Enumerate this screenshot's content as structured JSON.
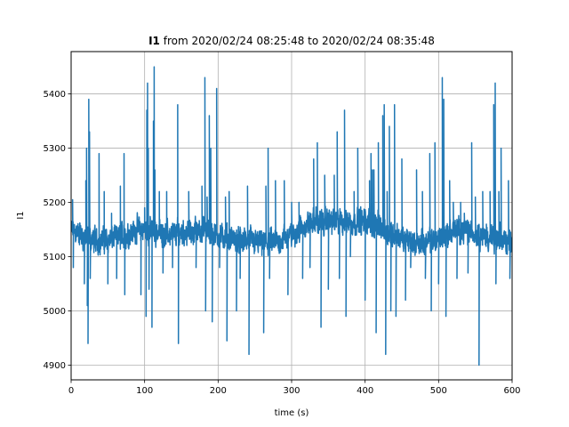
{
  "chart_data": {
    "type": "line",
    "title_bold": "I1",
    "title_rest": " from 2020/02/24 08:25:48 to 2020/02/24 08:35:48",
    "xlabel": "time (s)",
    "ylabel": "I1",
    "xlim": [
      0,
      600
    ],
    "ylim": [
      4873,
      5478
    ],
    "xticks": [
      0,
      100,
      200,
      300,
      400,
      500,
      600
    ],
    "yticks": [
      4900,
      5000,
      5100,
      5200,
      5300,
      5400
    ],
    "grid": true,
    "series_color": "#1f77b4",
    "series": [
      {
        "baseline": [
          [
            0,
            5150
          ],
          [
            15,
            5140
          ],
          [
            30,
            5130
          ],
          [
            45,
            5130
          ],
          [
            60,
            5135
          ],
          [
            75,
            5140
          ],
          [
            90,
            5150
          ],
          [
            105,
            5150
          ],
          [
            120,
            5145
          ],
          [
            135,
            5140
          ],
          [
            150,
            5145
          ],
          [
            165,
            5145
          ],
          [
            180,
            5150
          ],
          [
            195,
            5140
          ],
          [
            210,
            5135
          ],
          [
            225,
            5130
          ],
          [
            240,
            5130
          ],
          [
            255,
            5125
          ],
          [
            270,
            5125
          ],
          [
            285,
            5130
          ],
          [
            300,
            5140
          ],
          [
            315,
            5155
          ],
          [
            330,
            5165
          ],
          [
            345,
            5165
          ],
          [
            360,
            5165
          ],
          [
            375,
            5165
          ],
          [
            390,
            5165
          ],
          [
            400,
            5165
          ],
          [
            410,
            5160
          ],
          [
            425,
            5150
          ],
          [
            440,
            5140
          ],
          [
            455,
            5130
          ],
          [
            470,
            5125
          ],
          [
            485,
            5125
          ],
          [
            500,
            5135
          ],
          [
            515,
            5145
          ],
          [
            530,
            5150
          ],
          [
            545,
            5145
          ],
          [
            560,
            5140
          ],
          [
            575,
            5130
          ],
          [
            590,
            5130
          ],
          [
            600,
            5130
          ]
        ],
        "spikes": [
          [
            2,
            5205
          ],
          [
            3,
            5080
          ],
          [
            18,
            5050
          ],
          [
            20,
            5240
          ],
          [
            21,
            5300
          ],
          [
            22,
            5010
          ],
          [
            23,
            4940
          ],
          [
            24,
            5390
          ],
          [
            25,
            5330
          ],
          [
            26,
            5060
          ],
          [
            38,
            5290
          ],
          [
            45,
            5220
          ],
          [
            50,
            5050
          ],
          [
            55,
            5180
          ],
          [
            62,
            5060
          ],
          [
            67,
            5230
          ],
          [
            72,
            5290
          ],
          [
            73,
            5030
          ],
          [
            85,
            5140
          ],
          [
            95,
            5030
          ],
          [
            100,
            5190
          ],
          [
            102,
            4990
          ],
          [
            103,
            5370
          ],
          [
            104,
            5420
          ],
          [
            105,
            5300
          ],
          [
            106,
            5040
          ],
          [
            110,
            4970
          ],
          [
            112,
            5350
          ],
          [
            113,
            5450
          ],
          [
            114,
            5260
          ],
          [
            120,
            5220
          ],
          [
            125,
            5070
          ],
          [
            130,
            5220
          ],
          [
            138,
            5080
          ],
          [
            145,
            5380
          ],
          [
            146,
            4940
          ],
          [
            160,
            5220
          ],
          [
            170,
            5080
          ],
          [
            178,
            5230
          ],
          [
            182,
            5430
          ],
          [
            183,
            5000
          ],
          [
            185,
            5210
          ],
          [
            188,
            5360
          ],
          [
            190,
            5300
          ],
          [
            192,
            4980
          ],
          [
            195,
            5160
          ],
          [
            198,
            5410
          ],
          [
            202,
            5080
          ],
          [
            210,
            5210
          ],
          [
            212,
            4945
          ],
          [
            215,
            5220
          ],
          [
            225,
            5000
          ],
          [
            230,
            5060
          ],
          [
            240,
            5230
          ],
          [
            242,
            4920
          ],
          [
            258,
            5130
          ],
          [
            262,
            4960
          ],
          [
            265,
            5230
          ],
          [
            268,
            5300
          ],
          [
            270,
            5060
          ],
          [
            278,
            5240
          ],
          [
            290,
            5240
          ],
          [
            295,
            5030
          ],
          [
            300,
            5200
          ],
          [
            310,
            5200
          ],
          [
            315,
            5060
          ],
          [
            320,
            5150
          ],
          [
            325,
            5080
          ],
          [
            330,
            5280
          ],
          [
            335,
            5310
          ],
          [
            340,
            4970
          ],
          [
            345,
            5250
          ],
          [
            350,
            5040
          ],
          [
            358,
            5250
          ],
          [
            362,
            5330
          ],
          [
            365,
            5060
          ],
          [
            372,
            5370
          ],
          [
            374,
            4990
          ],
          [
            380,
            5100
          ],
          [
            385,
            5220
          ],
          [
            390,
            5300
          ],
          [
            395,
            5140
          ],
          [
            400,
            5020
          ],
          [
            406,
            5240
          ],
          [
            408,
            5290
          ],
          [
            410,
            5260
          ],
          [
            412,
            5260
          ],
          [
            415,
            4960
          ],
          [
            418,
            5310
          ],
          [
            420,
            5140
          ],
          [
            424,
            5360
          ],
          [
            426,
            5380
          ],
          [
            428,
            4920
          ],
          [
            430,
            5220
          ],
          [
            433,
            5340
          ],
          [
            435,
            5000
          ],
          [
            440,
            5380
          ],
          [
            442,
            4990
          ],
          [
            450,
            5280
          ],
          [
            455,
            5020
          ],
          [
            462,
            5080
          ],
          [
            470,
            5260
          ],
          [
            478,
            5220
          ],
          [
            482,
            5060
          ],
          [
            488,
            5290
          ],
          [
            490,
            5000
          ],
          [
            495,
            5310
          ],
          [
            500,
            5050
          ],
          [
            505,
            5430
          ],
          [
            507,
            5390
          ],
          [
            510,
            4990
          ],
          [
            515,
            5240
          ],
          [
            520,
            5200
          ],
          [
            525,
            5060
          ],
          [
            530,
            5200
          ],
          [
            535,
            5180
          ],
          [
            540,
            5070
          ],
          [
            545,
            5310
          ],
          [
            550,
            5210
          ],
          [
            555,
            4900
          ],
          [
            560,
            5220
          ],
          [
            565,
            5160
          ],
          [
            570,
            5220
          ],
          [
            575,
            5380
          ],
          [
            577,
            5420
          ],
          [
            578,
            5050
          ],
          [
            582,
            5220
          ],
          [
            585,
            5300
          ],
          [
            590,
            5140
          ],
          [
            595,
            5240
          ],
          [
            597,
            5060
          ],
          [
            600,
            5230
          ]
        ]
      }
    ]
  }
}
